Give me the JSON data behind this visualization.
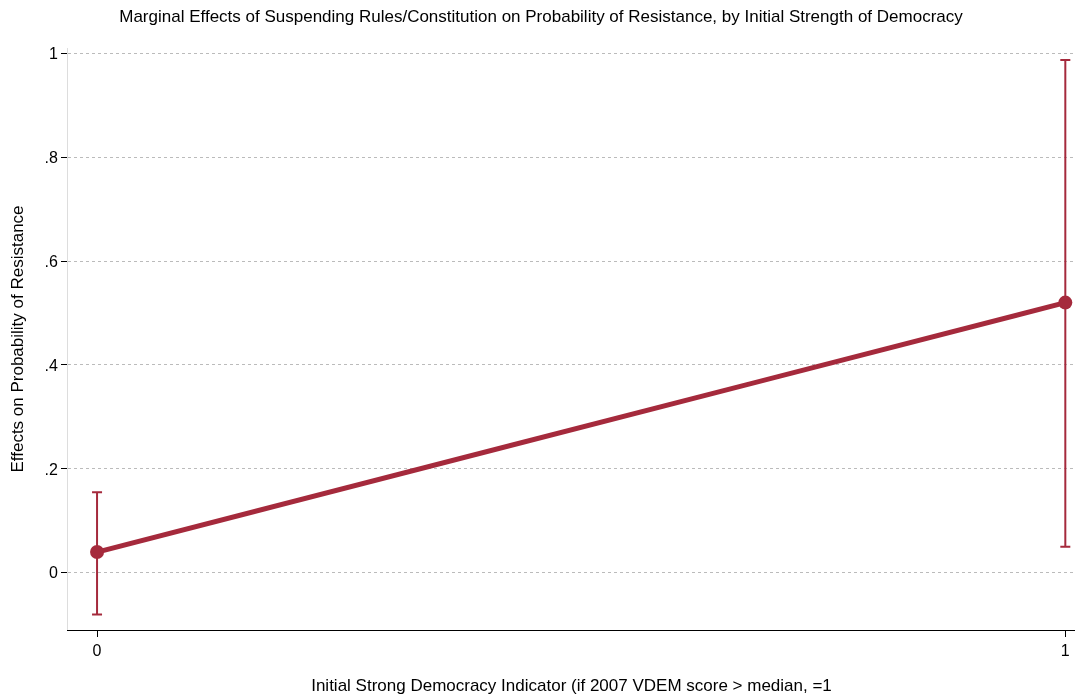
{
  "chart_data": {
    "type": "line",
    "title": "Marginal Effects of Suspending Rules/Constitution on Probability of Resistance, by Initial Strength of Democracy",
    "xlabel": "Initial Strong Democracy Indicator (if 2007 VDEM score > median, =1",
    "ylabel": "Effects on Probability of Resistance",
    "x": [
      0,
      1
    ],
    "series": [
      {
        "color": "#a52a3c",
        "values": [
          0.04,
          0.52
        ],
        "errors": [
          [
            -0.08,
            0.155
          ],
          [
            0.05,
            0.987
          ]
        ]
      }
    ],
    "xlim": [
      -0.03,
      1.01
    ],
    "xticks": [
      0,
      1
    ],
    "ylim": [
      -0.11,
      1.01
    ],
    "yticks": [
      {
        "value": 0,
        "label": "0"
      },
      {
        "value": 0.2,
        "label": ".2"
      },
      {
        "value": 0.4,
        "label": ".4"
      },
      {
        "value": 0.6,
        "label": ".6"
      },
      {
        "value": 0.8,
        "label": ".8"
      },
      {
        "value": 1,
        "label": "1"
      }
    ],
    "grid": "y",
    "marker": "circle",
    "line_style": "solid"
  }
}
